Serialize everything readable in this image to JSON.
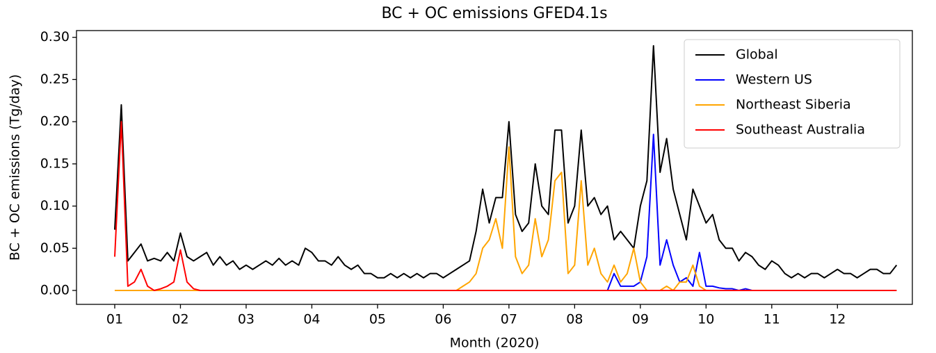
{
  "chart_data": {
    "type": "line",
    "title": "BC + OC emissions GFED4.1s",
    "x_label": "Month (2020)",
    "y_label": "BC + OC emissions (Tg/day)",
    "x": [
      1,
      1.1,
      1.2,
      1.3,
      1.4,
      1.5,
      1.6,
      1.7,
      1.8,
      1.9,
      2,
      2.1,
      2.2,
      2.3,
      2.4,
      2.5,
      2.6,
      2.7,
      2.8,
      2.9,
      3,
      3.1,
      3.2,
      3.3,
      3.4,
      3.5,
      3.6,
      3.7,
      3.8,
      3.9,
      4,
      4.1,
      4.2,
      4.3,
      4.4,
      4.5,
      4.6,
      4.7,
      4.8,
      4.9,
      5,
      5.1,
      5.2,
      5.3,
      5.4,
      5.5,
      5.6,
      5.7,
      5.8,
      5.9,
      6,
      6.1,
      6.2,
      6.3,
      6.4,
      6.5,
      6.6,
      6.7,
      6.8,
      6.9,
      7,
      7.1,
      7.2,
      7.3,
      7.4,
      7.5,
      7.6,
      7.7,
      7.8,
      7.9,
      8,
      8.1,
      8.2,
      8.3,
      8.4,
      8.5,
      8.6,
      8.7,
      8.8,
      8.9,
      9,
      9.1,
      9.2,
      9.3,
      9.4,
      9.5,
      9.6,
      9.7,
      9.8,
      9.9,
      10,
      10.1,
      10.2,
      10.3,
      10.4,
      10.5,
      10.6,
      10.7,
      10.8,
      10.9,
      11,
      11.1,
      11.2,
      11.3,
      11.4,
      11.5,
      11.6,
      11.7,
      11.8,
      11.9,
      12,
      12.1,
      12.2,
      12.3,
      12.4,
      12.5,
      12.6,
      12.7,
      12.8,
      12.9
    ],
    "series": [
      {
        "name": "Global",
        "color": "#000000",
        "values": [
          0.072,
          0.22,
          0.035,
          0.045,
          0.055,
          0.035,
          0.038,
          0.035,
          0.045,
          0.035,
          0.068,
          0.04,
          0.035,
          0.04,
          0.045,
          0.03,
          0.04,
          0.03,
          0.035,
          0.025,
          0.03,
          0.025,
          0.03,
          0.035,
          0.03,
          0.038,
          0.03,
          0.035,
          0.03,
          0.05,
          0.045,
          0.035,
          0.035,
          0.03,
          0.04,
          0.03,
          0.025,
          0.03,
          0.02,
          0.02,
          0.015,
          0.015,
          0.02,
          0.015,
          0.02,
          0.015,
          0.02,
          0.015,
          0.02,
          0.02,
          0.015,
          0.02,
          0.025,
          0.03,
          0.035,
          0.07,
          0.12,
          0.08,
          0.11,
          0.11,
          0.2,
          0.09,
          0.07,
          0.08,
          0.15,
          0.1,
          0.09,
          0.19,
          0.19,
          0.08,
          0.1,
          0.19,
          0.1,
          0.11,
          0.09,
          0.1,
          0.06,
          0.07,
          0.06,
          0.05,
          0.1,
          0.13,
          0.29,
          0.14,
          0.18,
          0.12,
          0.09,
          0.06,
          0.12,
          0.1,
          0.08,
          0.09,
          0.06,
          0.05,
          0.05,
          0.035,
          0.045,
          0.04,
          0.03,
          0.025,
          0.035,
          0.03,
          0.02,
          0.015,
          0.02,
          0.015,
          0.02,
          0.02,
          0.015,
          0.02,
          0.025,
          0.02,
          0.02,
          0.015,
          0.02,
          0.025,
          0.025,
          0.02,
          0.02,
          0.03
        ]
      },
      {
        "name": "Western US",
        "color": "#0000ff",
        "values": [
          0,
          0,
          0,
          0,
          0,
          0,
          0,
          0,
          0,
          0,
          0,
          0,
          0,
          0,
          0,
          0,
          0,
          0,
          0,
          0,
          0,
          0,
          0,
          0,
          0,
          0,
          0,
          0,
          0,
          0,
          0,
          0,
          0,
          0,
          0,
          0,
          0,
          0,
          0,
          0,
          0,
          0,
          0,
          0,
          0,
          0,
          0,
          0,
          0,
          0,
          0,
          0,
          0,
          0,
          0,
          0,
          0,
          0,
          0,
          0,
          0,
          0,
          0,
          0,
          0,
          0,
          0,
          0,
          0,
          0,
          0,
          0,
          0,
          0,
          0,
          0,
          0.02,
          0.005,
          0.005,
          0.005,
          0.01,
          0.04,
          0.185,
          0.03,
          0.06,
          0.03,
          0.01,
          0.015,
          0.005,
          0.045,
          0.005,
          0.005,
          0.003,
          0.002,
          0.002,
          0,
          0.002,
          0,
          0,
          0,
          0,
          0,
          0,
          0,
          0,
          0,
          0,
          0,
          0,
          0,
          0,
          0,
          0,
          0,
          0,
          0,
          0,
          0,
          0,
          0
        ]
      },
      {
        "name": "Northeast Siberia",
        "color": "#ffa500",
        "values": [
          0,
          0,
          0,
          0,
          0,
          0,
          0,
          0,
          0,
          0,
          0,
          0,
          0,
          0,
          0,
          0,
          0,
          0,
          0,
          0,
          0,
          0,
          0,
          0,
          0,
          0,
          0,
          0,
          0,
          0,
          0,
          0,
          0,
          0,
          0,
          0,
          0,
          0,
          0,
          0,
          0,
          0,
          0,
          0,
          0,
          0,
          0,
          0,
          0,
          0,
          0,
          0,
          0,
          0.005,
          0.01,
          0.02,
          0.05,
          0.06,
          0.085,
          0.05,
          0.17,
          0.04,
          0.02,
          0.03,
          0.085,
          0.04,
          0.06,
          0.13,
          0.14,
          0.02,
          0.03,
          0.13,
          0.03,
          0.05,
          0.02,
          0.01,
          0.03,
          0.01,
          0.02,
          0.05,
          0.01,
          0,
          0,
          0,
          0.005,
          0,
          0.01,
          0.01,
          0.03,
          0.005,
          0,
          0,
          0,
          0,
          0,
          0,
          0,
          0,
          0,
          0,
          0,
          0,
          0,
          0,
          0,
          0,
          0,
          0,
          0,
          0,
          0,
          0,
          0,
          0,
          0,
          0,
          0,
          0,
          0,
          0
        ]
      },
      {
        "name": "Southeast Australia",
        "color": "#ff0000",
        "values": [
          0.04,
          0.2,
          0.005,
          0.01,
          0.025,
          0.005,
          0,
          0.002,
          0.005,
          0.01,
          0.048,
          0.01,
          0.002,
          0,
          0,
          0,
          0,
          0,
          0,
          0,
          0,
          0,
          0,
          0,
          0,
          0,
          0,
          0,
          0,
          0,
          0,
          0,
          0,
          0,
          0,
          0,
          0,
          0,
          0,
          0,
          0,
          0,
          0,
          0,
          0,
          0,
          0,
          0,
          0,
          0,
          0,
          0,
          0,
          0,
          0,
          0,
          0,
          0,
          0,
          0,
          0,
          0,
          0,
          0,
          0,
          0,
          0,
          0,
          0,
          0,
          0,
          0,
          0,
          0,
          0,
          0,
          0,
          0,
          0,
          0,
          0,
          0,
          0,
          0,
          0,
          0,
          0,
          0,
          0,
          0,
          0,
          0,
          0,
          0,
          0,
          0,
          0,
          0,
          0,
          0,
          0,
          0,
          0,
          0,
          0,
          0,
          0,
          0,
          0,
          0,
          0,
          0,
          0,
          0,
          0,
          0,
          0,
          0,
          0,
          0
        ]
      }
    ],
    "xlim": [
      0.418,
      13.14
    ],
    "ylim": [
      -0.0165,
      0.308
    ],
    "xticks": [
      {
        "value": 1,
        "label": "01"
      },
      {
        "value": 2,
        "label": "02"
      },
      {
        "value": 3,
        "label": "03"
      },
      {
        "value": 4,
        "label": "04"
      },
      {
        "value": 5,
        "label": "05"
      },
      {
        "value": 6,
        "label": "06"
      },
      {
        "value": 7,
        "label": "07"
      },
      {
        "value": 8,
        "label": "08"
      },
      {
        "value": 9,
        "label": "09"
      },
      {
        "value": 10,
        "label": "10"
      },
      {
        "value": 11,
        "label": "11"
      },
      {
        "value": 12,
        "label": "12"
      }
    ],
    "yticks": [
      {
        "value": 0,
        "label": "0.00"
      },
      {
        "value": 0.05,
        "label": "0.05"
      },
      {
        "value": 0.1,
        "label": "0.10"
      },
      {
        "value": 0.15,
        "label": "0.15"
      },
      {
        "value": 0.2,
        "label": "0.20"
      },
      {
        "value": 0.25,
        "label": "0.25"
      },
      {
        "value": 0.3,
        "label": "0.30"
      }
    ],
    "legend": "upper right",
    "grid": false
  }
}
